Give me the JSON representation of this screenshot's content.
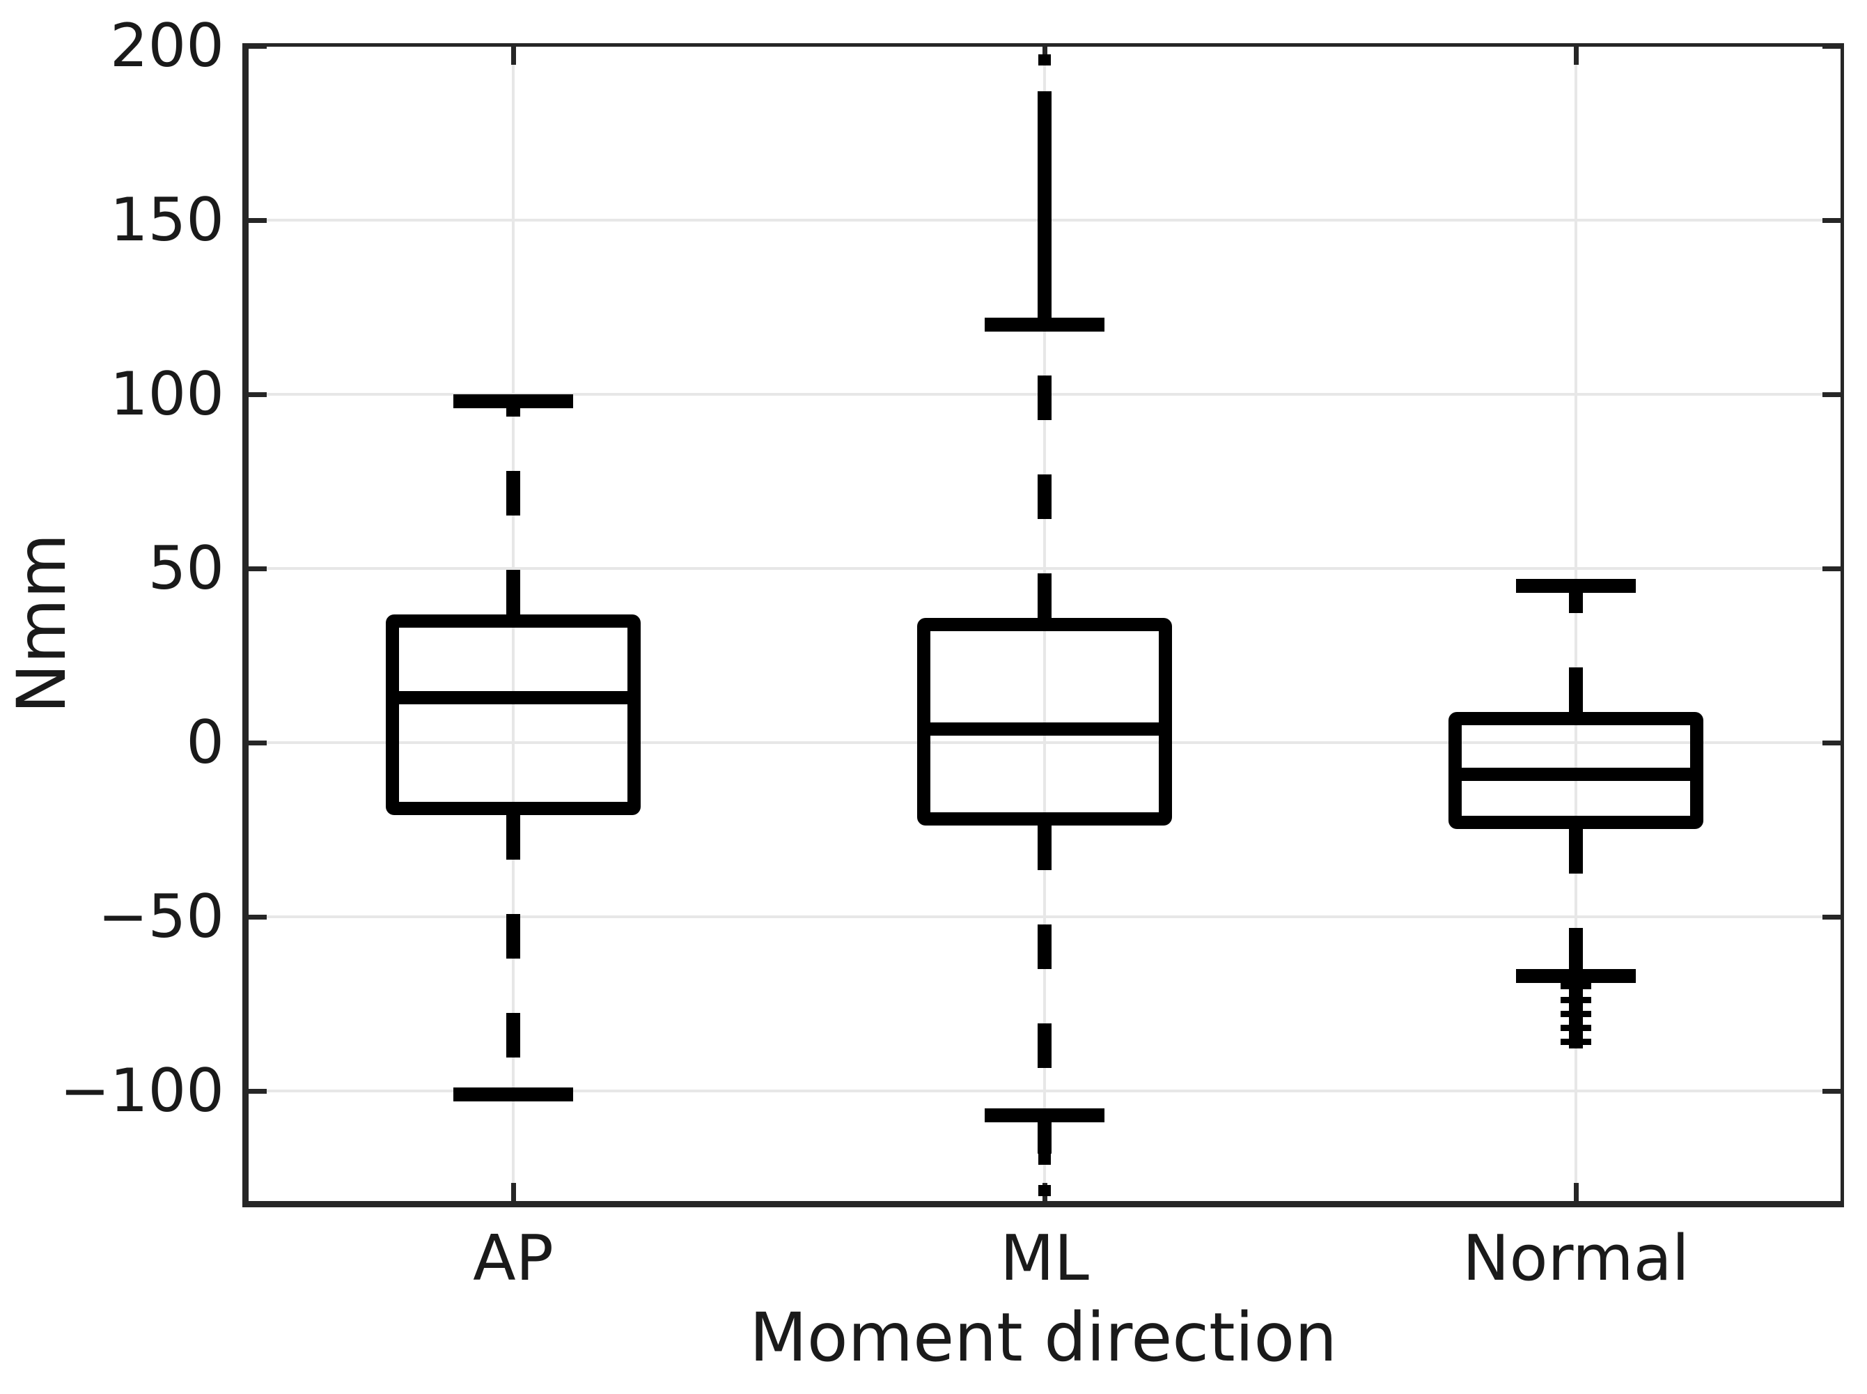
{
  "labels": {
    "ylabel": "Nmm",
    "xlabel": "Moment direction"
  },
  "colors": {
    "box_line": "#000000",
    "grid": "#e7e7e7",
    "spine": "#262626",
    "text": "#1a1a1a",
    "background": "#ffffff"
  },
  "y_axis": {
    "ticks": [
      200,
      150,
      100,
      50,
      0,
      -50,
      -100
    ],
    "min": -132,
    "max": 201,
    "grid": true
  },
  "chart_data": {
    "type": "boxplot",
    "title": "",
    "xlabel": "Moment direction",
    "ylabel": "Nmm",
    "categories": [
      "AP",
      "ML",
      "Normal"
    ],
    "ylim": [
      -132,
      201
    ],
    "legend": "none",
    "grid": true,
    "series": [
      {
        "name": "AP",
        "whislo": -101,
        "q1": -19,
        "med": 13,
        "q3": 35,
        "whishi": 98,
        "outlier_bars_high": [],
        "outlier_points_high": [],
        "outlier_bars_low": [],
        "outlier_points_low": [],
        "outlier_cluster_low": null
      },
      {
        "name": "ML",
        "whislo": -107,
        "q1": -22,
        "med": 4,
        "q3": 34,
        "whishi": 120,
        "outlier_bars_high": [
          [
            122,
            187
          ]
        ],
        "outlier_points_high": [
          196
        ],
        "outlier_bars_low": [
          [
            -118,
            -108
          ]
        ],
        "outlier_points_low": [
          -119.5,
          -128.5
        ],
        "outlier_cluster_low": null
      },
      {
        "name": "Normal",
        "whislo": -67,
        "q1": -23,
        "med": -9,
        "q3": 7,
        "whishi": 45,
        "outlier_bars_high": [],
        "outlier_points_high": [],
        "outlier_bars_low": [],
        "outlier_points_low": [],
        "outlier_cluster_low": [
          -69,
          -87
        ]
      }
    ]
  }
}
